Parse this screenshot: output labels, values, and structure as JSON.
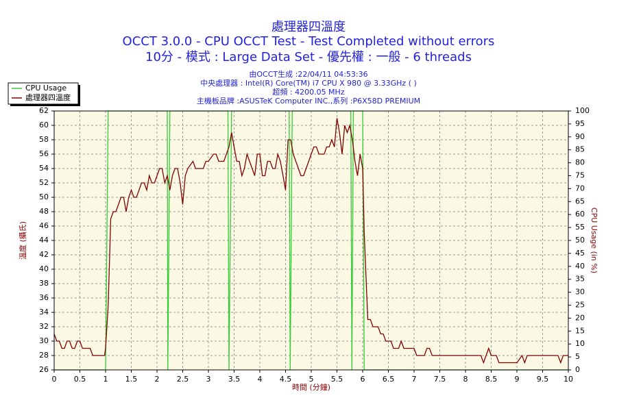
{
  "chart_data": {
    "type": "line",
    "title": "處理器四溫度",
    "subtitles": [
      "OCCT 3.0.0 - CPU OCCT Test - Test Completed without errors",
      "10分 - 模式 : Large Data Set - 優先權 : 一般 - 6 threads"
    ],
    "info": [
      "由OCCT生成 :22/04/11 04:53:36",
      "中央處理器 : Intel(R) Core(TM) i7 CPU X 980 @ 3.33GHz (   )",
      "超頻 : 4200.05 MHz",
      "主機板品牌 :ASUSTeK Computer INC.,系列 :P6X58D PREMIUM"
    ],
    "xlabel": "時間 (分鐘)",
    "ylabel": "溫度 (攝氏)",
    "y2label": "CPU Usage (in %)",
    "xlim": [
      0,
      10
    ],
    "xticks": [
      0,
      0.5,
      1,
      1.5,
      2,
      2.5,
      3,
      3.5,
      4,
      4.5,
      5,
      5.5,
      6,
      6.5,
      7,
      7.5,
      8,
      8.5,
      9,
      9.5,
      10
    ],
    "ylim": [
      26,
      62
    ],
    "yticks": [
      26,
      28,
      30,
      32,
      34,
      36,
      38,
      40,
      42,
      44,
      46,
      48,
      50,
      52,
      54,
      56,
      58,
      60,
      62
    ],
    "y2lim": [
      0,
      100
    ],
    "y2ticks": [
      0,
      5,
      10,
      15,
      20,
      25,
      30,
      35,
      40,
      45,
      50,
      55,
      60,
      65,
      70,
      75,
      80,
      85,
      90,
      95,
      100
    ],
    "grid": true,
    "legend": "upper left",
    "series": [
      {
        "name": "CPU Usage",
        "color": "#33cc33",
        "axis": "y2",
        "x": [
          0,
          1.0,
          1.05,
          2.2,
          2.21,
          2.25,
          3.38,
          3.4,
          3.45,
          4.57,
          4.59,
          4.63,
          5.77,
          5.79,
          5.82,
          6.0,
          6.03,
          10
        ],
        "values": [
          0,
          0,
          100,
          100,
          0,
          100,
          100,
          0,
          100,
          100,
          0,
          100,
          100,
          0,
          100,
          100,
          0,
          0
        ]
      },
      {
        "name": "處理器四溫度",
        "color": "#800000",
        "axis": "y",
        "x": [
          0,
          0.05,
          0.1,
          0.15,
          0.2,
          0.25,
          0.3,
          0.35,
          0.4,
          0.45,
          0.5,
          0.55,
          0.6,
          0.7,
          0.75,
          0.9,
          0.98,
          1.0,
          1.05,
          1.08,
          1.1,
          1.15,
          1.2,
          1.25,
          1.3,
          1.35,
          1.4,
          1.45,
          1.5,
          1.55,
          1.6,
          1.65,
          1.7,
          1.75,
          1.8,
          1.85,
          1.9,
          1.95,
          2.0,
          2.05,
          2.1,
          2.15,
          2.2,
          2.25,
          2.3,
          2.35,
          2.4,
          2.45,
          2.5,
          2.55,
          2.6,
          2.7,
          2.75,
          2.8,
          2.9,
          2.95,
          3.0,
          3.1,
          3.15,
          3.2,
          3.3,
          3.35,
          3.4,
          3.45,
          3.5,
          3.55,
          3.6,
          3.65,
          3.7,
          3.75,
          3.8,
          3.85,
          3.9,
          3.95,
          4.0,
          4.05,
          4.1,
          4.15,
          4.2,
          4.25,
          4.3,
          4.35,
          4.4,
          4.45,
          4.5,
          4.55,
          4.6,
          4.65,
          4.7,
          4.75,
          4.8,
          4.85,
          4.9,
          4.95,
          5.0,
          5.05,
          5.1,
          5.15,
          5.2,
          5.25,
          5.3,
          5.35,
          5.4,
          5.45,
          5.5,
          5.55,
          5.6,
          5.65,
          5.7,
          5.75,
          5.8,
          5.85,
          5.9,
          5.95,
          6.0,
          6.03,
          6.07,
          6.1,
          6.15,
          6.2,
          6.3,
          6.35,
          6.4,
          6.45,
          6.55,
          6.6,
          6.7,
          6.75,
          6.8,
          6.9,
          7.0,
          7.05,
          7.2,
          7.25,
          7.3,
          7.35,
          7.8,
          7.9,
          8.3,
          8.35,
          8.4,
          8.45,
          8.5,
          8.6,
          8.65,
          9.0,
          9.1,
          9.15,
          9.2,
          9.8,
          9.85,
          9.9,
          10
        ],
        "values": [
          31,
          30,
          30,
          29,
          29,
          30,
          30,
          29,
          29,
          30,
          30,
          29,
          29,
          29,
          28,
          28,
          28,
          29,
          35,
          42,
          47,
          48,
          48,
          49,
          50,
          50,
          48,
          50,
          51,
          50,
          50,
          51,
          52,
          52,
          51,
          53,
          52,
          52,
          53,
          54,
          54,
          52,
          53,
          51,
          53,
          54,
          54,
          52,
          49,
          53,
          54,
          55,
          54,
          54,
          54,
          55,
          55,
          56,
          56,
          55,
          55,
          56,
          57,
          59,
          57,
          55,
          55,
          53,
          54,
          56,
          55,
          54,
          53,
          56,
          56,
          53,
          53,
          55,
          55,
          54,
          54,
          56,
          55,
          53,
          51,
          58,
          58,
          56,
          55,
          54,
          53,
          53,
          54,
          55,
          56,
          57,
          57,
          56,
          56,
          56,
          57,
          57,
          58,
          57,
          61,
          59,
          56,
          60,
          59,
          60,
          58,
          55,
          53,
          56,
          54,
          45,
          38,
          33,
          33,
          32,
          32,
          31,
          31,
          30,
          30,
          29,
          29,
          30,
          29,
          29,
          29,
          28,
          28,
          29,
          29,
          28,
          28,
          28,
          28,
          27,
          28,
          29,
          28,
          28,
          27,
          27,
          28,
          27,
          28,
          28,
          27,
          28,
          28
        ]
      }
    ]
  }
}
